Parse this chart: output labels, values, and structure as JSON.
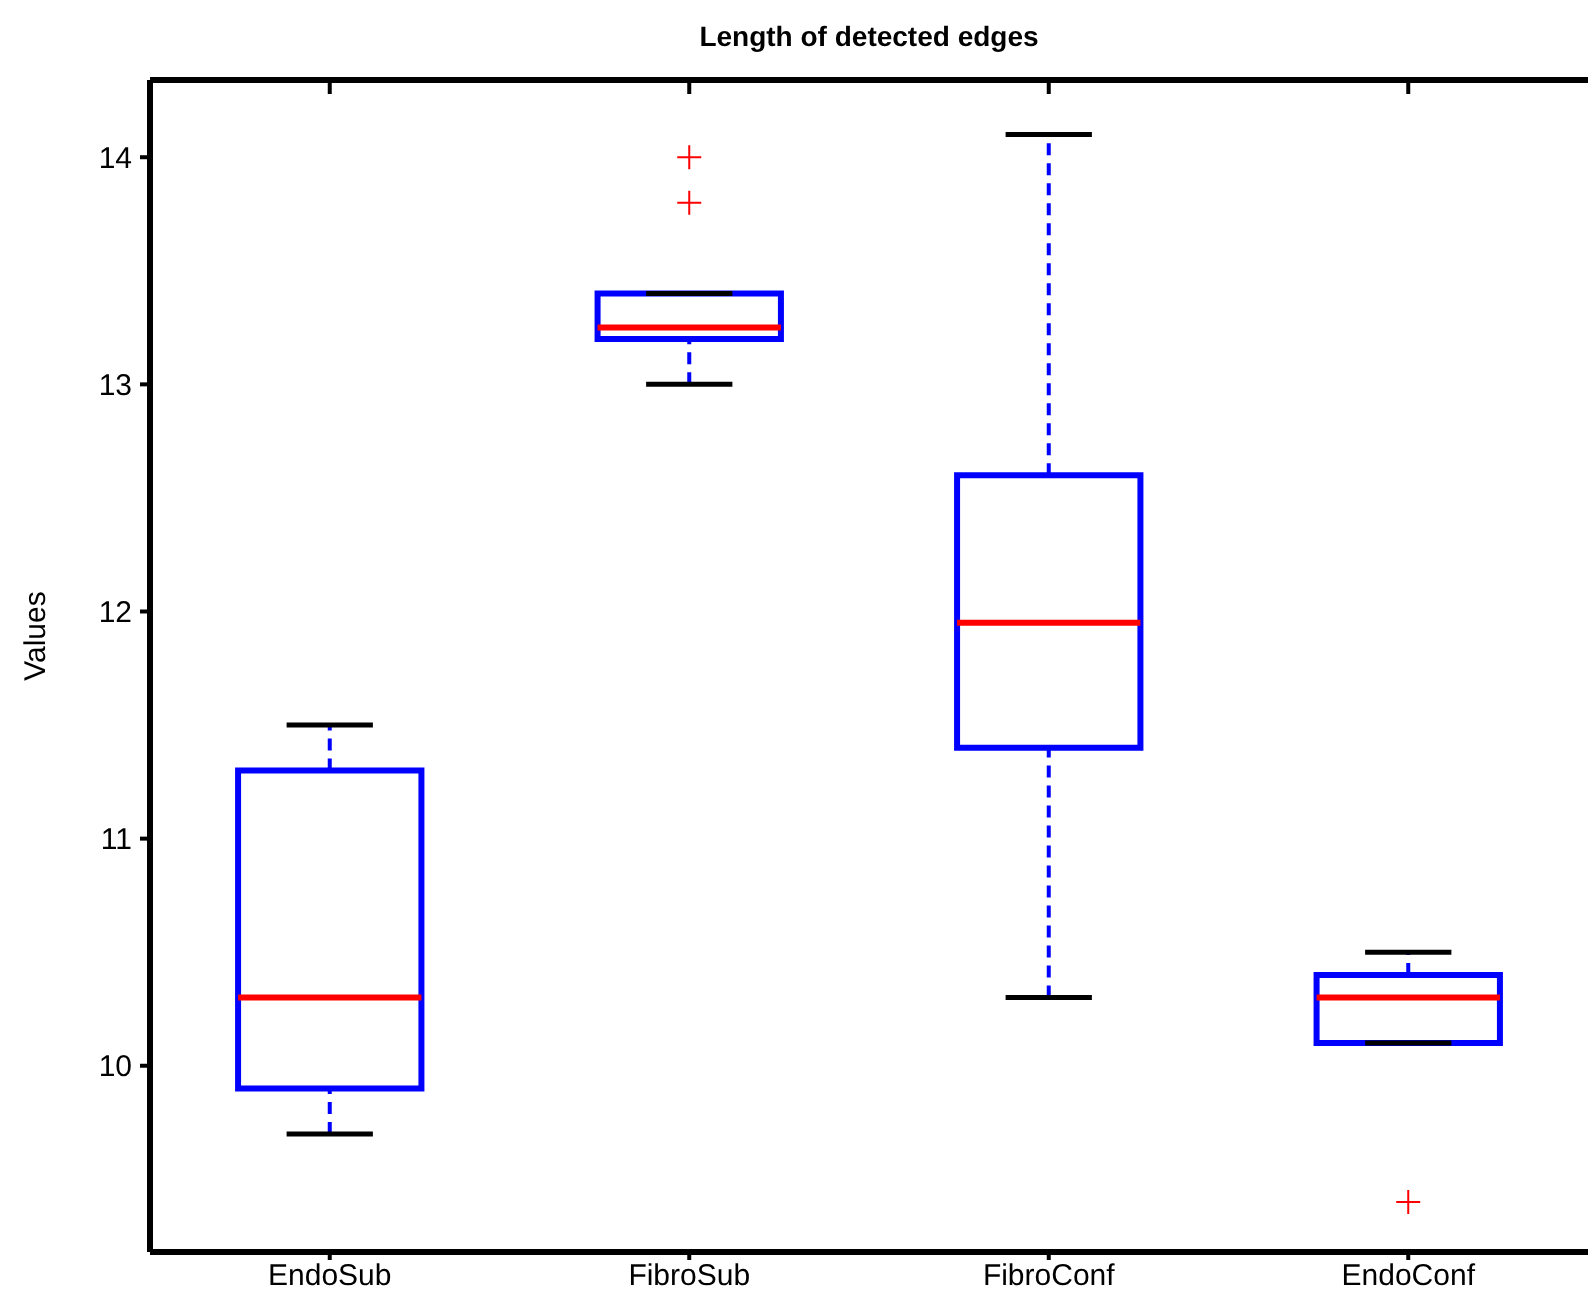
{
  "chart_data": {
    "type": "box",
    "title": "Length of detected edges",
    "ylabel": "Values",
    "categories": [
      "EndoSub",
      "FibroSub",
      "FibroConf",
      "EndoConf"
    ],
    "boxes": [
      {
        "low": 9.7,
        "q1": 9.9,
        "median": 10.3,
        "q3": 11.3,
        "high": 11.5
      },
      {
        "low": 13.0,
        "q1": 13.2,
        "median": 13.25,
        "q3": 13.4,
        "high": 13.4,
        "outliers": [
          13.8,
          14.0
        ]
      },
      {
        "low": 10.3,
        "q1": 11.4,
        "median": 11.95,
        "q3": 12.6,
        "high": 14.1
      },
      {
        "low": 10.1,
        "q1": 10.1,
        "median": 10.3,
        "q3": 10.4,
        "high": 10.5,
        "outliers": [
          9.4
        ]
      }
    ],
    "color": "#0000ff",
    "ylim": [
      9.18,
      14.34
    ],
    "yticks": [
      10,
      11,
      12,
      13,
      14
    ]
  }
}
